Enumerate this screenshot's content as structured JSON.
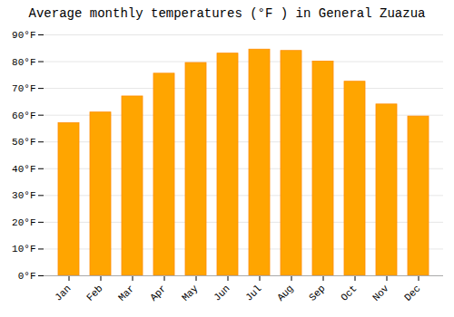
{
  "chart_data": {
    "type": "bar",
    "title": "Average monthly temperatures (°F ) in General Zuazua",
    "categories": [
      "Jan",
      "Feb",
      "Mar",
      "Apr",
      "May",
      "Jun",
      "Jul",
      "Aug",
      "Sep",
      "Oct",
      "Nov",
      "Dec"
    ],
    "values": [
      57,
      61,
      67,
      75.5,
      79.5,
      83,
      84.5,
      84,
      80,
      72.5,
      64,
      59.5
    ],
    "color": "#FFA500",
    "ylim": [
      0,
      90
    ],
    "yticks": [
      {
        "value": 0,
        "label": "0°F"
      },
      {
        "value": 10,
        "label": "10°F"
      },
      {
        "value": 20,
        "label": "20°F"
      },
      {
        "value": 30,
        "label": "30°F"
      },
      {
        "value": 40,
        "label": "40°F"
      },
      {
        "value": 50,
        "label": "50°F"
      },
      {
        "value": 60,
        "label": "60°F"
      },
      {
        "value": 70,
        "label": "70°F"
      },
      {
        "value": 80,
        "label": "80°F"
      },
      {
        "value": 90,
        "label": "90°F"
      }
    ],
    "grid": true
  }
}
